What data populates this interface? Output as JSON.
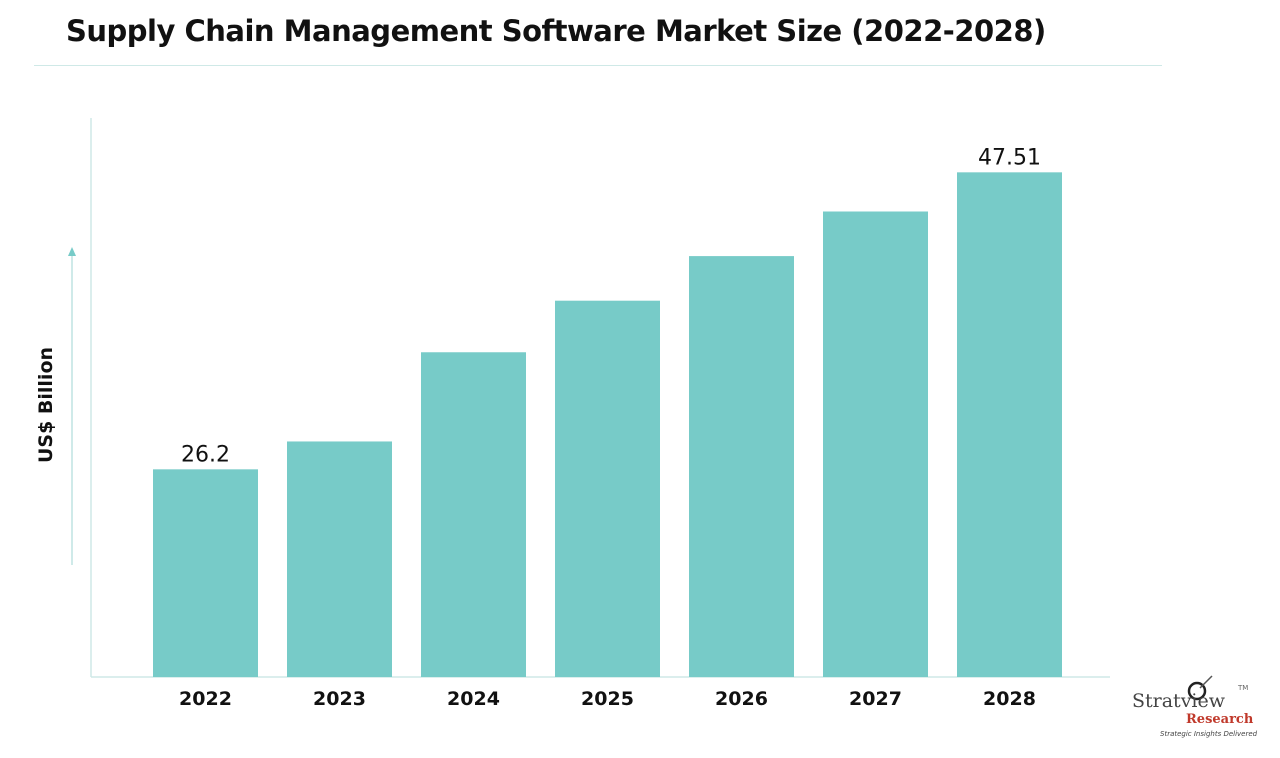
{
  "chart_data": {
    "type": "bar",
    "title": "Supply Chain Management Software Market Size (2022-2028)",
    "xlabel": "",
    "ylabel": "US$ Billion",
    "categories": [
      "2022",
      "2023",
      "2024",
      "2025",
      "2026",
      "2027",
      "2028"
    ],
    "values": [
      26.2,
      28.2,
      34.6,
      38.3,
      41.5,
      44.7,
      47.51
    ],
    "data_labels": {
      "2022": "26.2",
      "2028": "47.51"
    },
    "ylim": [
      11.3,
      50
    ],
    "grid": false,
    "bar_color": "#77cbc8",
    "axis_color": "#cfe9e7"
  },
  "logo": {
    "name": "Stratview",
    "tm": "TM",
    "sub": "Research",
    "tagline": "Strategic Insights Delivered"
  }
}
